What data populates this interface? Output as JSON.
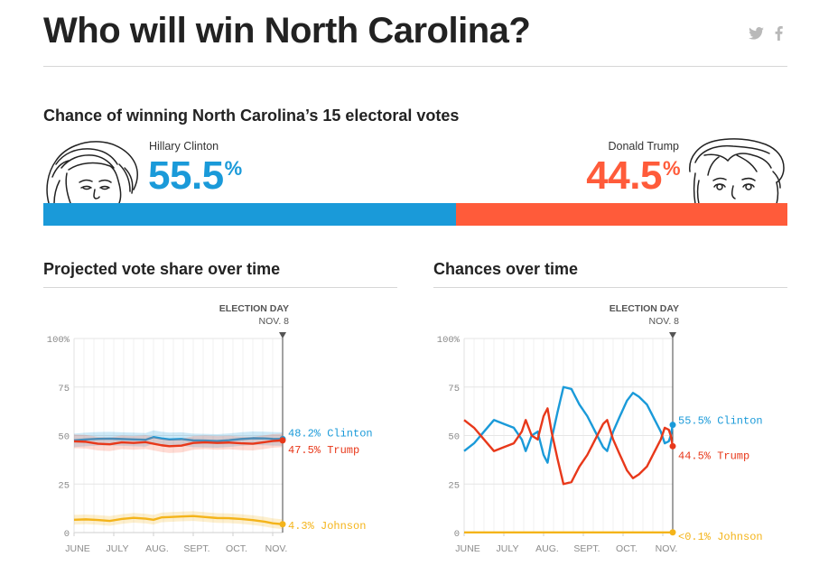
{
  "title": "Who will win North Carolina?",
  "social": {
    "twitter_icon": "twitter-icon",
    "facebook_icon": "facebook-icon"
  },
  "colors": {
    "clinton": "#1a9ad9",
    "trump": "#ff5b3a",
    "johnson": "#f4b41a",
    "trump_line": "#e8381a"
  },
  "summary": {
    "heading": "Chance of winning North Carolina’s 15 electoral votes",
    "clinton": {
      "name": "Hillary Clinton",
      "value": "55.5",
      "unit": "%",
      "share": 0.555
    },
    "trump": {
      "name": "Donald Trump",
      "value": "44.5",
      "unit": "%",
      "share": 0.445
    }
  },
  "panels": {
    "vote_share_title": "Projected vote share over time",
    "chances_title": "Chances over time",
    "election_day_label": "ELECTION DAY",
    "election_day_date": "NOV. 8"
  },
  "chart_data": [
    {
      "type": "line",
      "title": "Projected vote share over time",
      "x_tick_labels": [
        "JUNE",
        "JULY",
        "AUG.",
        "SEPT.",
        "OCT.",
        "NOV."
      ],
      "x_months": [
        6,
        7,
        8,
        9,
        10,
        11
      ],
      "xlim": [
        6.0,
        11.25
      ],
      "ylim": [
        0,
        100
      ],
      "y_ticks": [
        0,
        25,
        50,
        75,
        100
      ],
      "y_tick_labels": [
        "0",
        "25",
        "50",
        "75",
        "100%"
      ],
      "grid": true,
      "annotation": "ELECTION DAY NOV. 8",
      "series": [
        {
          "name": "Clinton",
          "end_label": "48.2% Clinton",
          "end_value": 48.2,
          "x": [
            6.0,
            6.3,
            6.6,
            6.9,
            7.2,
            7.5,
            7.8,
            8.0,
            8.2,
            8.4,
            8.7,
            9.0,
            9.3,
            9.6,
            9.9,
            10.2,
            10.5,
            10.8,
            11.0,
            11.25
          ],
          "values": [
            47.5,
            48.0,
            48.3,
            48.4,
            48.2,
            48.0,
            47.8,
            49.2,
            48.5,
            48.0,
            48.2,
            47.5,
            47.4,
            47.2,
            47.6,
            48.2,
            48.6,
            48.5,
            48.3,
            48.2
          ]
        },
        {
          "name": "Trump",
          "end_label": "47.5% Trump",
          "end_value": 47.5,
          "x": [
            6.0,
            6.3,
            6.6,
            6.9,
            7.2,
            7.5,
            7.8,
            8.0,
            8.2,
            8.4,
            8.7,
            9.0,
            9.3,
            9.6,
            9.9,
            10.2,
            10.5,
            10.8,
            11.0,
            11.25
          ],
          "values": [
            47.0,
            46.8,
            45.8,
            45.5,
            46.5,
            46.2,
            46.6,
            45.8,
            45.0,
            44.5,
            44.8,
            46.2,
            46.5,
            46.2,
            46.4,
            46.0,
            45.8,
            46.6,
            47.2,
            47.5
          ]
        },
        {
          "name": "Johnson",
          "end_label": "4.3% Johnson",
          "end_value": 4.3,
          "x": [
            6.0,
            6.3,
            6.6,
            6.9,
            7.2,
            7.5,
            7.8,
            8.0,
            8.2,
            8.4,
            8.7,
            9.0,
            9.3,
            9.6,
            9.9,
            10.2,
            10.5,
            10.8,
            11.0,
            11.25
          ],
          "values": [
            6.6,
            6.8,
            6.5,
            6.0,
            7.0,
            7.6,
            7.2,
            6.6,
            7.8,
            8.0,
            8.3,
            8.5,
            8.0,
            7.5,
            7.4,
            7.0,
            6.4,
            5.6,
            4.8,
            4.3
          ]
        }
      ]
    },
    {
      "type": "line",
      "title": "Chances over time",
      "x_tick_labels": [
        "JUNE",
        "JULY",
        "AUG.",
        "SEPT.",
        "OCT.",
        "NOV."
      ],
      "x_months": [
        6,
        7,
        8,
        9,
        10,
        11
      ],
      "xlim": [
        6.0,
        11.25
      ],
      "ylim": [
        0,
        100
      ],
      "y_ticks": [
        0,
        25,
        50,
        75,
        100
      ],
      "y_tick_labels": [
        "0",
        "25",
        "50",
        "75",
        "100%"
      ],
      "grid": true,
      "annotation": "ELECTION DAY NOV. 8",
      "series": [
        {
          "name": "Clinton",
          "end_label": "55.5% Clinton",
          "end_value": 55.5,
          "x": [
            6.0,
            6.25,
            6.5,
            6.75,
            7.0,
            7.25,
            7.45,
            7.55,
            7.7,
            7.85,
            8.0,
            8.1,
            8.2,
            8.35,
            8.5,
            8.7,
            8.9,
            9.1,
            9.3,
            9.5,
            9.6,
            9.75,
            9.9,
            10.1,
            10.25,
            10.4,
            10.6,
            10.8,
            10.95,
            11.05,
            11.15,
            11.2,
            11.25
          ],
          "values": [
            42,
            46,
            52,
            58,
            56,
            54,
            48,
            42,
            50,
            52,
            40,
            36,
            48,
            62,
            75,
            74,
            66,
            60,
            52,
            44,
            42,
            52,
            59,
            68,
            72,
            70,
            66,
            58,
            52,
            46,
            47,
            50,
            55.5
          ]
        },
        {
          "name": "Trump",
          "end_label": "44.5% Trump",
          "end_value": 44.5,
          "x": [
            6.0,
            6.25,
            6.5,
            6.75,
            7.0,
            7.25,
            7.45,
            7.55,
            7.7,
            7.85,
            8.0,
            8.1,
            8.2,
            8.35,
            8.5,
            8.7,
            8.9,
            9.1,
            9.3,
            9.5,
            9.6,
            9.75,
            9.9,
            10.1,
            10.25,
            10.4,
            10.6,
            10.8,
            10.95,
            11.05,
            11.15,
            11.2,
            11.25
          ],
          "values": [
            58,
            54,
            48,
            42,
            44,
            46,
            52,
            58,
            50,
            48,
            60,
            64,
            52,
            38,
            25,
            26,
            34,
            40,
            48,
            56,
            58,
            48,
            41,
            32,
            28,
            30,
            34,
            42,
            48,
            54,
            53,
            50,
            44.5
          ]
        },
        {
          "name": "Johnson",
          "end_label": "<0.1% Johnson",
          "end_value": 0.1,
          "x": [
            6.0,
            11.25
          ],
          "values": [
            0.1,
            0.1
          ]
        }
      ]
    }
  ]
}
